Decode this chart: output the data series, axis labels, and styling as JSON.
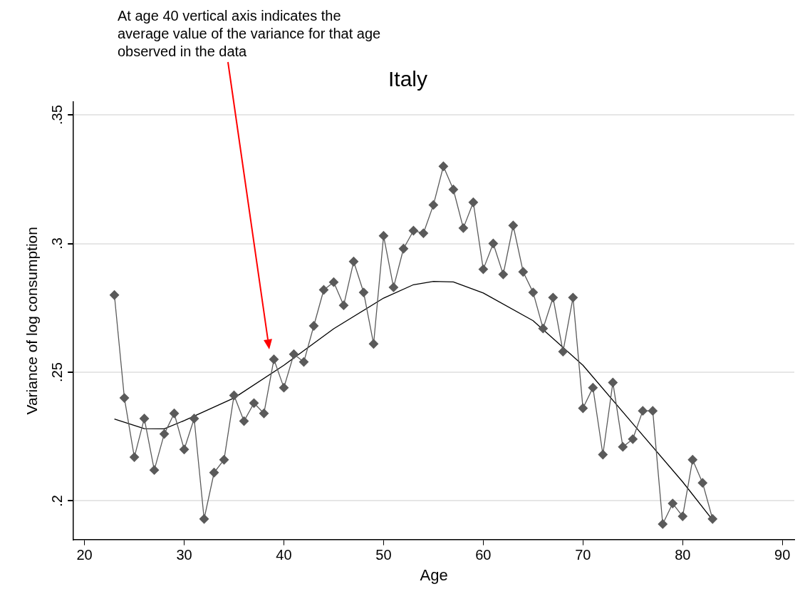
{
  "chart_data": {
    "type": "line",
    "title": "Italy",
    "xlabel": "Age",
    "ylabel": "Variance of log consumption",
    "xlim": [
      18.9,
      91.2
    ],
    "xticks": [
      20,
      30,
      40,
      50,
      60,
      70,
      80,
      90
    ],
    "ylim": [
      0.185,
      0.355
    ],
    "yticks": [
      {
        "value": 0.2,
        "label": ".2"
      },
      {
        "value": 0.25,
        "label": ".25"
      },
      {
        "value": 0.3,
        "label": ".3"
      },
      {
        "value": 0.35,
        "label": ".35"
      }
    ],
    "grid": "y",
    "legend": false,
    "annotations": [
      "At age 40 vertical axis indicates the average value of the variance for that age observed in the data"
    ],
    "series": [
      {
        "color": "#5a5a5a",
        "marker": "diamond",
        "x": [
          23,
          24,
          25,
          26,
          27,
          28,
          29,
          30,
          31,
          32,
          33,
          34,
          35,
          36,
          37,
          38,
          39,
          40,
          41,
          42,
          43,
          44,
          45,
          46,
          47,
          48,
          49,
          50,
          51,
          52,
          53,
          54,
          55,
          56,
          57,
          58,
          59,
          60,
          61,
          62,
          63,
          64,
          65,
          66,
          67,
          68,
          69,
          70,
          71,
          72,
          73,
          74,
          75,
          76,
          77,
          78,
          79,
          80,
          81,
          82,
          83
        ],
        "values": [
          0.28,
          0.24,
          0.217,
          0.232,
          0.212,
          0.226,
          0.234,
          0.22,
          0.232,
          0.193,
          0.211,
          0.216,
          0.241,
          0.231,
          0.238,
          0.234,
          0.255,
          0.244,
          0.257,
          0.254,
          0.268,
          0.282,
          0.285,
          0.276,
          0.293,
          0.281,
          0.261,
          0.303,
          0.283,
          0.298,
          0.305,
          0.304,
          0.315,
          0.33,
          0.321,
          0.306,
          0.316,
          0.29,
          0.3,
          0.288,
          0.307,
          0.289,
          0.281,
          0.267,
          0.279,
          0.258,
          0.279,
          0.236,
          0.244,
          0.218,
          0.246,
          0.221,
          0.224,
          0.235,
          0.235,
          0.191,
          0.199,
          0.194,
          0.216,
          0.207,
          0.193
        ]
      },
      {
        "color": "#000000",
        "marker": "none",
        "x": [
          23,
          26,
          28,
          30,
          35,
          40,
          45,
          50,
          53,
          55,
          57,
          60,
          65,
          70,
          75,
          80,
          83
        ],
        "values": [
          0.2318,
          0.2281,
          0.228,
          0.2312,
          0.24,
          0.2527,
          0.2669,
          0.2788,
          0.284,
          0.2853,
          0.2851,
          0.2808,
          0.27,
          0.2527,
          0.23,
          0.2074,
          0.1926
        ]
      }
    ]
  }
}
